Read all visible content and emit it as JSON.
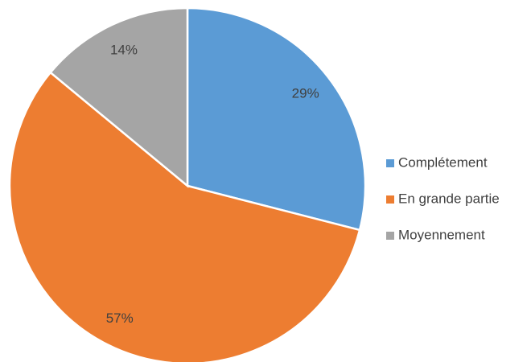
{
  "chart_data": {
    "type": "pie",
    "categories": [
      "Complétement",
      "En grande partie",
      "Moyennement"
    ],
    "values": [
      29,
      57,
      14
    ],
    "value_labels": [
      "29%",
      "57%",
      "14%"
    ],
    "colors": [
      "#5b9bd5",
      "#ed7d31",
      "#a5a5a5"
    ],
    "legend": "right"
  }
}
